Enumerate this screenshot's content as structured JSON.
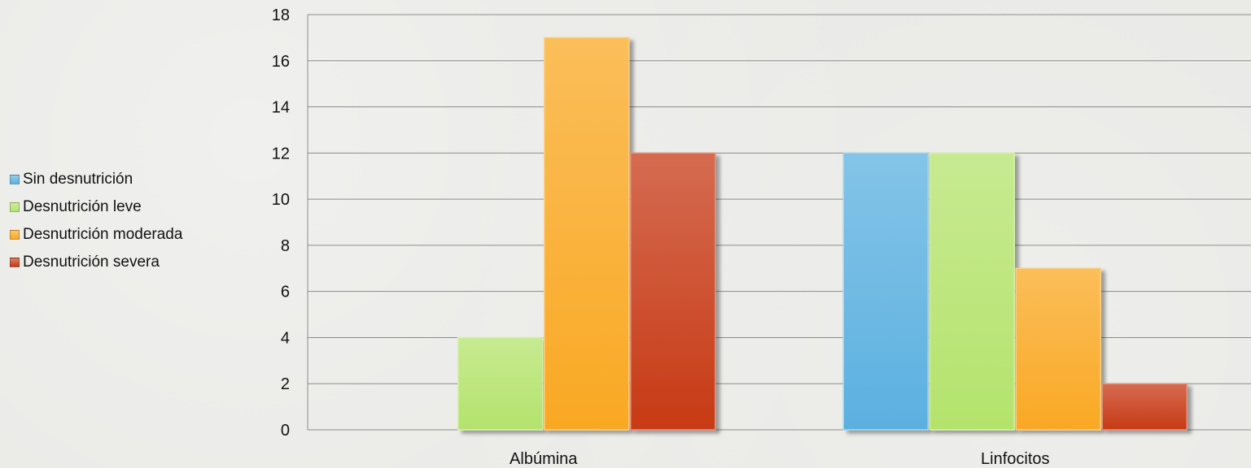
{
  "chart_data": {
    "type": "bar",
    "categories": [
      "Albúmina",
      "Linfocitos"
    ],
    "series": [
      {
        "name": "Sin desnutrición",
        "values": [
          0,
          12
        ],
        "color": "#5bb0e0"
      },
      {
        "name": "Desnutrición leve",
        "values": [
          4,
          12
        ],
        "color": "#b4e36c"
      },
      {
        "name": "Desnutrición moderada",
        "values": [
          17,
          7
        ],
        "color": "#f9a823"
      },
      {
        "name": "Desnutrición severa",
        "values": [
          12,
          2
        ],
        "color": "#c73a15"
      }
    ],
    "yticks": [
      0,
      2,
      4,
      6,
      8,
      10,
      12,
      14,
      16,
      18
    ],
    "ylim": [
      0,
      18
    ],
    "title": "",
    "xlabel": "",
    "ylabel": "",
    "grid": true,
    "legend_position": "left"
  }
}
